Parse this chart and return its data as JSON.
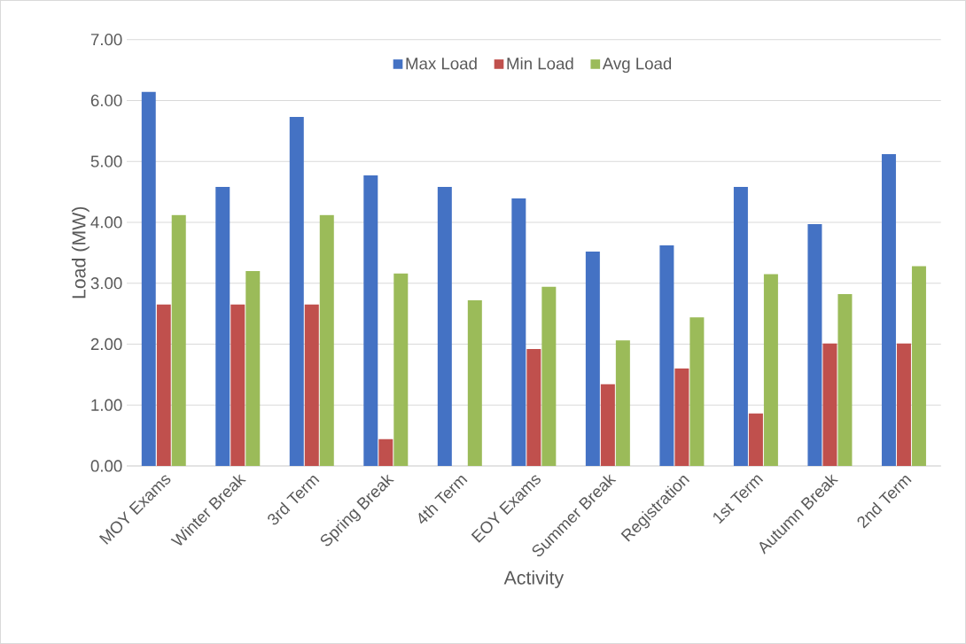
{
  "chart_data": {
    "type": "bar",
    "xlabel": "Activity",
    "ylabel": "Load (MW)",
    "categories": [
      "MOY Exams",
      "Winter Break",
      "3rd Term",
      "Spring Break",
      "4th Term",
      "EOY Exams",
      "Summer Break",
      "Registration",
      "1st Term",
      "Autumn Break",
      "2nd Term"
    ],
    "series": [
      {
        "name": "Max Load",
        "color": "#4472c4",
        "values": [
          6.14,
          4.58,
          5.73,
          4.77,
          4.58,
          4.39,
          3.52,
          3.62,
          4.58,
          3.97,
          5.12
        ]
      },
      {
        "name": "Min Load",
        "color": "#c0504d",
        "values": [
          2.65,
          2.65,
          2.65,
          0.44,
          0,
          1.92,
          1.34,
          1.6,
          0.86,
          2.01,
          2.01
        ]
      },
      {
        "name": "Avg Load",
        "color": "#9bbb59",
        "values": [
          4.12,
          3.2,
          4.12,
          3.16,
          2.72,
          2.94,
          2.06,
          2.44,
          3.15,
          2.82,
          3.28
        ]
      }
    ],
    "ylim": [
      0,
      7
    ],
    "yticks": [
      {
        "value": 0,
        "label": "0.00"
      },
      {
        "value": 1,
        "label": "1.00"
      },
      {
        "value": 2,
        "label": "2.00"
      },
      {
        "value": 3,
        "label": "3.00"
      },
      {
        "value": 4,
        "label": "4.00"
      },
      {
        "value": 5,
        "label": "5.00"
      },
      {
        "value": 6,
        "label": "6.00"
      },
      {
        "value": 7,
        "label": "7.00"
      }
    ],
    "grid": "y",
    "legend": "top"
  }
}
